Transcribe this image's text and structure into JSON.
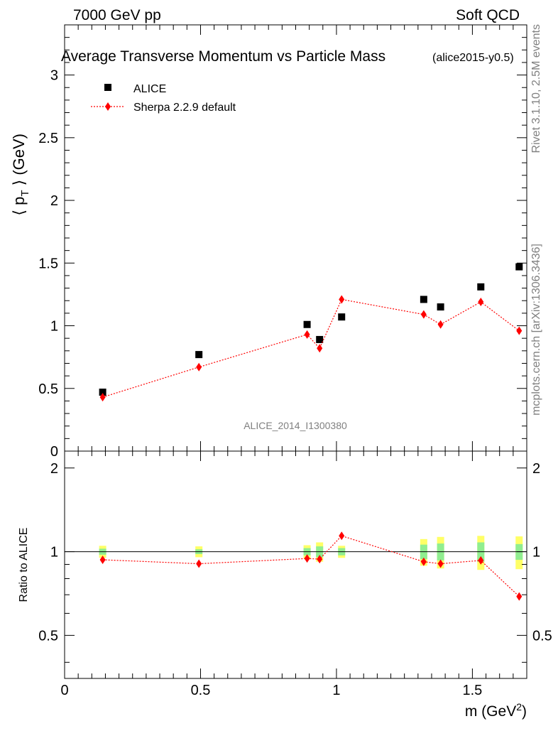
{
  "header": {
    "left": "7000 GeV pp",
    "right": "Soft QCD"
  },
  "side_text": {
    "rivet": "Rivet 3.1.10,  2.5M events",
    "mcplots": "mcplots.cern.ch [arXiv:1306.3436]"
  },
  "chart_data": [
    {
      "type": "scatter",
      "title": "Average Transverse Momentum vs Particle Mass",
      "subtitle": "(alice2015-y0.5)",
      "ylabel": "⟨ p_T ⟩ (GeV)",
      "xlim": [
        0,
        1.7
      ],
      "ylim": [
        0,
        3.4
      ],
      "yticks": [
        "0",
        "0.5",
        "1",
        "1.5",
        "2",
        "2.5",
        "3"
      ],
      "watermark": "ALICE_2014_I1300380",
      "legend_position": "top-left",
      "series": [
        {
          "name": "ALICE",
          "color": "#000000",
          "marker": "square",
          "x": [
            0.14,
            0.494,
            0.892,
            0.938,
            1.019,
            1.321,
            1.383,
            1.531,
            1.672
          ],
          "y": [
            0.47,
            0.77,
            1.01,
            0.89,
            1.07,
            1.21,
            1.15,
            1.31,
            1.47
          ]
        },
        {
          "name": "Sherpa 2.2.9 default",
          "color": "#ff0000",
          "marker": "diamond",
          "line": "dotted",
          "x": [
            0.14,
            0.494,
            0.892,
            0.938,
            1.019,
            1.321,
            1.383,
            1.531,
            1.672
          ],
          "y": [
            0.43,
            0.67,
            0.93,
            0.82,
            1.21,
            1.09,
            1.01,
            1.19,
            0.96
          ]
        }
      ]
    },
    {
      "type": "scatter",
      "ylabel": "Ratio to ALICE",
      "xlabel": "m (GeV²)",
      "xlim": [
        0,
        1.7
      ],
      "ylim": [
        0.35,
        2.3
      ],
      "yscale": "log",
      "xticks": [
        "0",
        "0.5",
        "1",
        "1.5"
      ],
      "yticks": [
        "0.5",
        "1",
        "2"
      ],
      "reference_line": 1,
      "band_colors": {
        "stat": "#90ee90",
        "total": "#ffff66"
      },
      "bands": {
        "x": [
          0.14,
          0.494,
          0.892,
          0.938,
          1.019,
          1.321,
          1.383,
          1.531,
          1.672
        ],
        "stat": [
          0.025,
          0.02,
          0.03,
          0.045,
          0.03,
          0.06,
          0.07,
          0.08,
          0.065
        ],
        "total": [
          0.05,
          0.045,
          0.055,
          0.08,
          0.05,
          0.11,
          0.13,
          0.14,
          0.135
        ]
      },
      "series": [
        {
          "name": "Sherpa 2.2.9 default",
          "color": "#ff0000",
          "marker": "diamond",
          "line": "dotted",
          "x": [
            0.14,
            0.494,
            0.892,
            0.938,
            1.019,
            1.321,
            1.383,
            1.531,
            1.672
          ],
          "y": [
            0.935,
            0.905,
            0.945,
            0.94,
            1.14,
            0.92,
            0.905,
            0.93,
            0.69
          ]
        }
      ]
    }
  ]
}
